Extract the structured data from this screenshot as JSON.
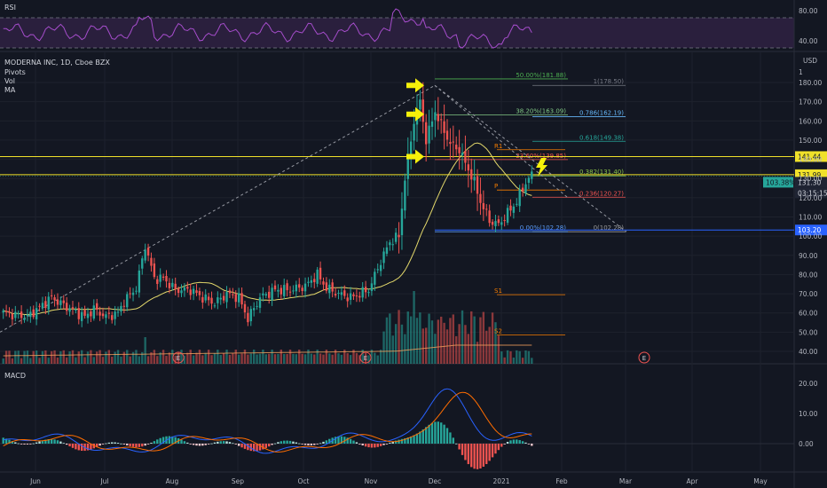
{
  "chart_data": {
    "type": "candlestick",
    "symbol_header": "MODERNA INC, 1D, Cboe BZX",
    "indicators": [
      "Pivots",
      "Vol",
      "MA"
    ],
    "currency": "USD",
    "x_ticks": [
      "Jun",
      "Jul",
      "Aug",
      "Sep",
      "Oct",
      "Nov",
      "Dec",
      "2021",
      "Feb",
      "Mar",
      "Apr",
      "May"
    ],
    "price_axis": {
      "ticks": [
        "180.00",
        "170.00",
        "160.00",
        "150.00",
        "140.00",
        "130.00",
        "120.00",
        "110.00",
        "100.00",
        "90.00",
        "80.00",
        "70.00",
        "60.00",
        "50.00",
        "40.00"
      ],
      "unit_label": "1"
    },
    "price_tags": {
      "last_price": "131.30",
      "countdown": "03:15:15",
      "change_pct": "103.38%",
      "line_upper": "141.44",
      "line_lower": "131.99",
      "line_blue": "103.20"
    },
    "fib_retracement": [
      {
        "label": "1(178.50)",
        "value": 178.5,
        "color": "#787b86"
      },
      {
        "label": "0.786(162.19)",
        "value": 162.19,
        "color": "#64b5f6"
      },
      {
        "label": "0.618(149.38)",
        "value": 149.38,
        "color": "#26a69a"
      },
      {
        "label": "0.382(131.40)",
        "value": 131.4,
        "color": "#8bc34a"
      },
      {
        "label": "0.236(120.27)",
        "value": 120.27,
        "color": "#ef5350"
      },
      {
        "label": "0(102.28)",
        "value": 102.28,
        "color": "#9e9e9e"
      }
    ],
    "fib_extension": [
      {
        "label": "50.00%(181.88)",
        "value": 181.88,
        "color": "#4caf50"
      },
      {
        "label": "38.20%(163.09)",
        "value": 163.09,
        "color": "#81c784"
      },
      {
        "label": "23.60%(139.85)",
        "value": 139.85,
        "color": "#ef5350"
      },
      {
        "label": "0.00%(102.28)",
        "value": 102.28,
        "color": "#5b9cf6"
      }
    ],
    "pivots": [
      {
        "label": "R1",
        "value": 145
      },
      {
        "label": "P",
        "value": 124
      },
      {
        "label": "S1",
        "value": 69.5
      },
      {
        "label": "S2",
        "value": 48.5
      }
    ],
    "earnings_markers": [
      "E",
      "E",
      "E"
    ],
    "rsi": {
      "title": "RSI",
      "ticks": [
        "80.00",
        "40.00"
      ]
    },
    "macd": {
      "title": "MACD",
      "ticks": [
        "20.00",
        "10.00",
        "0.00"
      ]
    }
  }
}
